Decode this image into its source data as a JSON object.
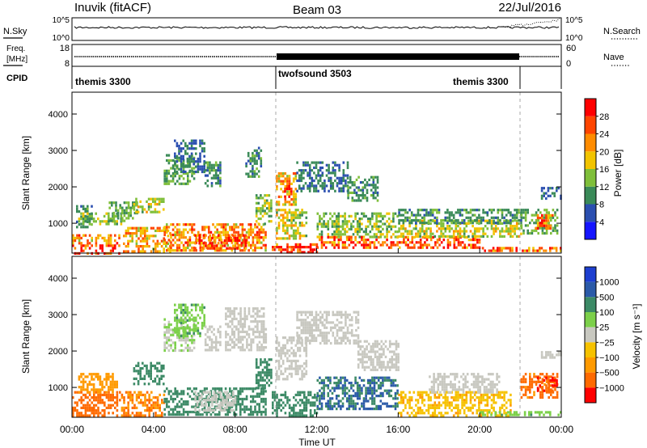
{
  "header": {
    "station": "Inuvik (fitACF)",
    "beam": "Beam 03",
    "date": "22/Jul/2016"
  },
  "nsky_panel": {
    "label": "N.Sky",
    "left_ticks": [
      "10^5",
      "10^0"
    ],
    "right_ticks": [
      "10^5",
      "10^0"
    ],
    "right_label": "N.Search",
    "right_legend_style": "dotted"
  },
  "freq_panel": {
    "label_line1": "Freq.",
    "label_line2": "[MHz]",
    "left_ticks": [
      "18",
      "8"
    ],
    "right_ticks": [
      "60",
      "0"
    ],
    "right_label": "Nave",
    "right_legend_style": "dotted"
  },
  "cpid_panel": {
    "label": "CPID",
    "segments": [
      {
        "name": "themis 3300",
        "start_h": 0,
        "end_h": 10
      },
      {
        "name": "twofsound 3503",
        "start_h": 10,
        "end_h": 22
      },
      {
        "name": "themis 3300",
        "start_h": 22,
        "end_h": 24
      }
    ],
    "segment_labels": [
      "themis 3300",
      "twofsound 3503",
      "themis 3300"
    ]
  },
  "chart_data": [
    {
      "type": "heatmap",
      "name": "power",
      "ylabel": "Slant Range [km]",
      "colorbar_label": "Power [dB]",
      "y_ticks": [
        1000,
        2000,
        3000,
        4000
      ],
      "y_tick_labels": [
        "1000",
        "2000",
        "3000",
        "4000"
      ],
      "ylim": [
        180,
        4600
      ],
      "colorbar_ticks": [
        "4",
        "8",
        "12",
        "16",
        "20",
        "24",
        "28"
      ],
      "colorbar_colors": [
        "#1515ff",
        "#2b4fb0",
        "#3a8a58",
        "#7fbf3a",
        "#f2c400",
        "#ff8c00",
        "#ff4500",
        "#ff0000"
      ],
      "regions": [
        {
          "t0": 0.0,
          "t1": 2.3,
          "r0": 200,
          "r1": 420,
          "db": 28
        },
        {
          "t0": 0.0,
          "t1": 2.3,
          "r0": 420,
          "r1": 700,
          "db": 22
        },
        {
          "t0": 0.2,
          "t1": 1.0,
          "r0": 900,
          "r1": 1500,
          "db": 10
        },
        {
          "t0": 0.3,
          "t1": 2.4,
          "r0": 1000,
          "r1": 1300,
          "db": 14
        },
        {
          "t0": 1.8,
          "t1": 3.2,
          "r0": 1100,
          "r1": 1600,
          "db": 12
        },
        {
          "t0": 2.5,
          "t1": 4.8,
          "r0": 250,
          "r1": 900,
          "db": 20
        },
        {
          "t0": 3.0,
          "t1": 4.5,
          "r0": 1300,
          "r1": 1700,
          "db": 16
        },
        {
          "t0": 4.5,
          "t1": 6.0,
          "r0": 2100,
          "r1": 2900,
          "db": 12
        },
        {
          "t0": 5.0,
          "t1": 6.5,
          "r0": 2400,
          "r1": 3300,
          "db": 8
        },
        {
          "t0": 4.5,
          "t1": 9.5,
          "r0": 250,
          "r1": 1000,
          "db": 22
        },
        {
          "t0": 6.0,
          "t1": 8.5,
          "r0": 300,
          "r1": 700,
          "db": 26
        },
        {
          "t0": 6.5,
          "t1": 7.3,
          "r0": 2000,
          "r1": 2700,
          "db": 10
        },
        {
          "t0": 8.5,
          "t1": 9.3,
          "r0": 2300,
          "r1": 3100,
          "db": 10
        },
        {
          "t0": 9.0,
          "t1": 9.8,
          "r0": 1000,
          "r1": 1800,
          "db": 14
        },
        {
          "t0": 9.8,
          "t1": 12.0,
          "r0": 200,
          "r1": 450,
          "db": 28
        },
        {
          "t0": 10.0,
          "t1": 11.0,
          "r0": 1500,
          "r1": 2400,
          "db": 20
        },
        {
          "t0": 10.4,
          "t1": 10.8,
          "r0": 1750,
          "r1": 2050,
          "db": 28
        },
        {
          "t0": 10.0,
          "t1": 11.5,
          "r0": 600,
          "r1": 1400,
          "db": 16
        },
        {
          "t0": 11.0,
          "t1": 13.5,
          "r0": 1900,
          "r1": 2700,
          "db": 8
        },
        {
          "t0": 12.0,
          "t1": 16.0,
          "r0": 600,
          "r1": 1300,
          "db": 14
        },
        {
          "t0": 13.5,
          "t1": 15.0,
          "r0": 1600,
          "r1": 2300,
          "db": 10
        },
        {
          "t0": 12.0,
          "t1": 20.0,
          "r0": 350,
          "r1": 650,
          "db": 26
        },
        {
          "t0": 16.0,
          "t1": 22.0,
          "r0": 650,
          "r1": 1100,
          "db": 16
        },
        {
          "t0": 16.0,
          "t1": 22.0,
          "r0": 1000,
          "r1": 1400,
          "db": 10
        },
        {
          "t0": 20.0,
          "t1": 24.0,
          "r0": 220,
          "r1": 350,
          "db": 24
        },
        {
          "t0": 22.0,
          "t1": 23.8,
          "r0": 700,
          "r1": 1400,
          "db": 12
        },
        {
          "t0": 22.7,
          "t1": 23.6,
          "r0": 850,
          "r1": 1250,
          "db": 24
        },
        {
          "t0": 23.0,
          "t1": 24.0,
          "r0": 1700,
          "r1": 2000,
          "db": 8
        }
      ]
    },
    {
      "type": "heatmap",
      "name": "velocity",
      "xlabel": "Time UT",
      "ylabel": "Slant Range [km]",
      "colorbar_label": "Velocity  [m s⁻¹]",
      "x_ticks": [
        0,
        4,
        8,
        12,
        16,
        20,
        24
      ],
      "x_tick_labels": [
        "00:00",
        "04:00",
        "08:00",
        "12:00",
        "16:00",
        "20:00",
        "00:00"
      ],
      "y_ticks": [
        1000,
        2000,
        3000,
        4000
      ],
      "y_tick_labels": [
        "1000",
        "2000",
        "3000",
        "4000"
      ],
      "ylim": [
        180,
        4600
      ],
      "colorbar_ticks": [
        "1000",
        "500",
        "100",
        "25",
        "−25",
        "−100",
        "−500",
        "−1000"
      ],
      "colorbar_colors": [
        "#1d3fd0",
        "#2b5aa8",
        "#3c8a66",
        "#7cd04a",
        "#c8c8c0",
        "#f6c200",
        "#ff9a00",
        "#ff6a00",
        "#ff0000"
      ],
      "regions": [
        {
          "t0": 0.0,
          "t1": 2.2,
          "r0": 250,
          "r1": 900,
          "v": -500
        },
        {
          "t0": 0.3,
          "t1": 2.2,
          "r0": 900,
          "r1": 1400,
          "v": -100
        },
        {
          "t0": 2.3,
          "t1": 4.5,
          "r0": 250,
          "r1": 900,
          "v": -300
        },
        {
          "t0": 3.0,
          "t1": 4.5,
          "r0": 1100,
          "r1": 1700,
          "v": 100
        },
        {
          "t0": 4.5,
          "t1": 6.0,
          "r0": 2000,
          "r1": 2900,
          "v": 25
        },
        {
          "t0": 5.0,
          "t1": 6.5,
          "r0": 2400,
          "r1": 3300,
          "v": 50
        },
        {
          "t0": 4.5,
          "t1": 9.5,
          "r0": 250,
          "r1": 1000,
          "v": 200
        },
        {
          "t0": 6.0,
          "t1": 8.0,
          "r0": 400,
          "r1": 900,
          "v": 0
        },
        {
          "t0": 6.5,
          "t1": 7.3,
          "r0": 2000,
          "r1": 2700,
          "v": 0
        },
        {
          "t0": 7.5,
          "t1": 9.5,
          "r0": 2000,
          "r1": 3200,
          "v": 0
        },
        {
          "t0": 9.0,
          "t1": 9.8,
          "r0": 1000,
          "r1": 1800,
          "v": 200
        },
        {
          "t0": 9.8,
          "t1": 12.0,
          "r0": 250,
          "r1": 900,
          "v": 200
        },
        {
          "t0": 10.0,
          "t1": 11.5,
          "r0": 1200,
          "r1": 2400,
          "v": 0
        },
        {
          "t0": 11.0,
          "t1": 14.0,
          "r0": 2200,
          "r1": 3100,
          "v": 0
        },
        {
          "t0": 12.0,
          "t1": 16.0,
          "r0": 400,
          "r1": 1300,
          "v": 300
        },
        {
          "t0": 14.0,
          "t1": 16.0,
          "r0": 1500,
          "r1": 2300,
          "v": 0
        },
        {
          "t0": 16.0,
          "t1": 21.5,
          "r0": 250,
          "r1": 900,
          "v": -50
        },
        {
          "t0": 17.5,
          "t1": 21.0,
          "r0": 900,
          "r1": 1400,
          "v": 0
        },
        {
          "t0": 20.0,
          "t1": 24.0,
          "r0": 220,
          "r1": 350,
          "v": 50
        },
        {
          "t0": 22.0,
          "t1": 23.8,
          "r0": 700,
          "r1": 1400,
          "v": -400
        },
        {
          "t0": 22.8,
          "t1": 23.8,
          "r0": 900,
          "r1": 1300,
          "v": -800
        },
        {
          "t0": 23.0,
          "t1": 24.0,
          "r0": 1800,
          "r1": 2000,
          "v": 0
        }
      ]
    }
  ]
}
